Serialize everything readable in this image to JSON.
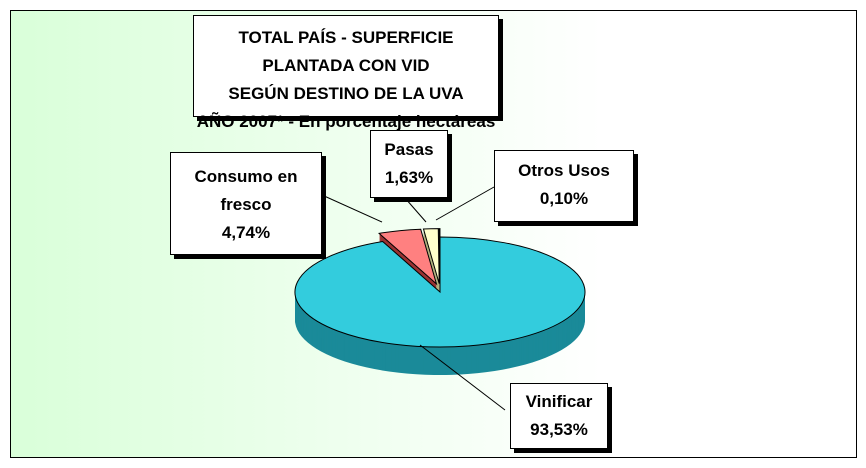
{
  "chart_data": {
    "type": "pie",
    "title": [
      "TOTAL PAÍS - SUPERFICIE PLANTADA CON VID",
      "SEGÚN DESTINO DE LA UVA",
      "AÑO 2007* - En porcentaje hectáreas"
    ],
    "categories": [
      "Vinificar",
      "Consumo en fresco",
      "Pasas",
      "Otros Usos"
    ],
    "values": [
      93.53,
      4.74,
      1.63,
      0.1
    ],
    "value_labels": [
      "93,53%",
      "4,74%",
      "1,63%",
      "0,10%"
    ],
    "colors": [
      "#33ccdd",
      "#ff8080",
      "#ffffcc",
      "#ffffcc"
    ],
    "side_colors": [
      "#1a8a99",
      "#993333",
      "#b3b380",
      "#b3b380"
    ]
  }
}
